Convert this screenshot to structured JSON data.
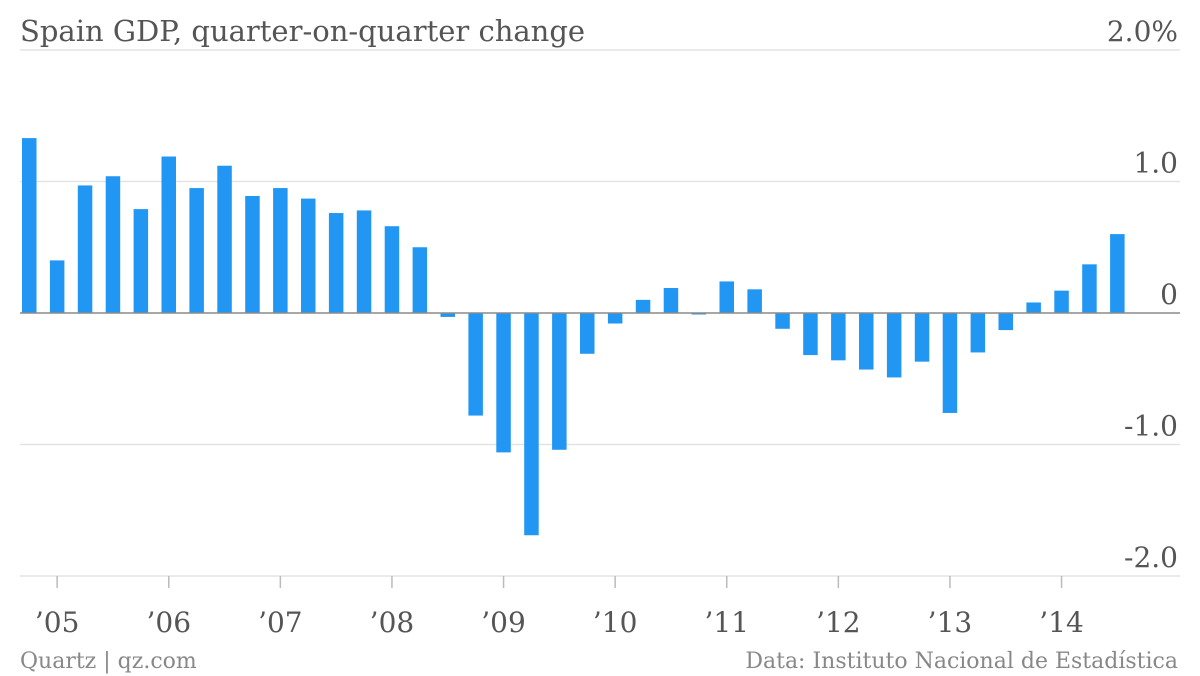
{
  "chart_data": {
    "type": "bar",
    "title": "Spain GDP, quarter-on-quarter change",
    "y_unit": "%",
    "ylim": [
      -2.0,
      2.0
    ],
    "y_ticks": [
      {
        "value": 2.0,
        "label": "2.0%"
      },
      {
        "value": 1.0,
        "label": "1.0"
      },
      {
        "value": 0,
        "label": "0"
      },
      {
        "value": -1.0,
        "label": "-1.0"
      },
      {
        "value": -2.0,
        "label": "-2.0"
      }
    ],
    "x_tick_labels": [
      "’05",
      "’06",
      "’07",
      "’08",
      "’09",
      "’10",
      "’11",
      "’12",
      "’13",
      "’14"
    ],
    "first_quarter": "2004 Q4",
    "values": [
      1.33,
      0.4,
      0.97,
      1.04,
      0.79,
      1.19,
      0.95,
      1.12,
      0.89,
      0.95,
      0.87,
      0.76,
      0.78,
      0.66,
      0.5,
      -0.03,
      -0.78,
      -1.06,
      -1.69,
      -1.04,
      -0.31,
      -0.08,
      0.1,
      0.19,
      -0.01,
      0.24,
      0.18,
      -0.12,
      -0.32,
      -0.36,
      -0.43,
      -0.49,
      -0.37,
      -0.76,
      -0.3,
      -0.13,
      0.08,
      0.17,
      0.37,
      0.6
    ],
    "bar_color": "#2196f3",
    "grid": true,
    "legend": false
  },
  "footer": {
    "left": "Quartz | qz.com",
    "right": "Data: Instituto Nacional de Estadística"
  }
}
